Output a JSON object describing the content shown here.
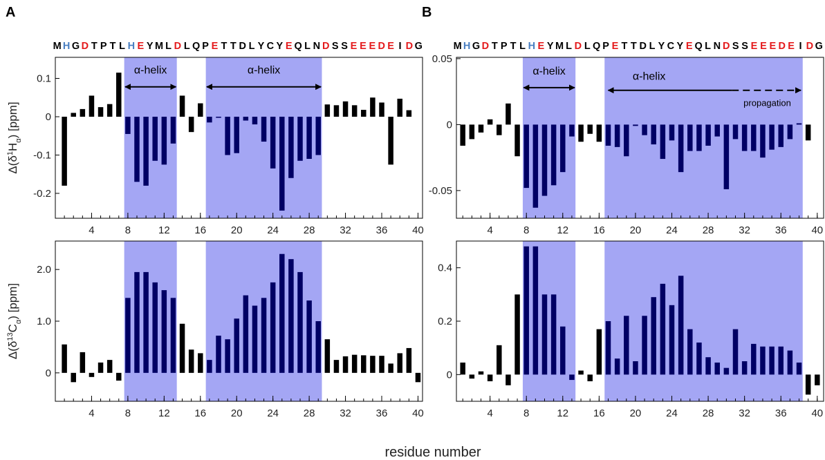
{
  "figure": {
    "xlabel": "residue number"
  },
  "sequence": {
    "residues": "MHGDTPTLHEYMLDLQPETTDLYCYEQLNDSSEEEDEIDG",
    "blue_positions": [
      2,
      9
    ],
    "red_positions": [
      4,
      10,
      14,
      18,
      26,
      30,
      33,
      34,
      35,
      36,
      37,
      39
    ]
  },
  "colors": {
    "helix_band": "#a4a6f4",
    "bar_in_helix": "#000064",
    "bar_default": "#000000",
    "seq_default": "#000000",
    "seq_red": "#e41a1c",
    "seq_blue": "#4a7fc1"
  },
  "chart_data": [
    {
      "id": "A-Ha",
      "panel_label": "A",
      "type": "bar",
      "ylabel_main": "Δ(δ",
      "ylabel_sup": "1",
      "ylabel_atom": "H",
      "ylabel_sub": "α",
      "ylabel_tail": ") [ppm]",
      "xlim": [
        0,
        40.5
      ],
      "ylim": [
        -0.265,
        0.155
      ],
      "xticks": [
        4,
        8,
        12,
        16,
        20,
        24,
        28,
        32,
        36,
        40
      ],
      "yticks": [
        {
          "value": 0.1,
          "label": "0.1"
        },
        {
          "value": 0,
          "label": "0"
        },
        {
          "value": -0.1,
          "label": "-0.1"
        },
        {
          "value": -0.2,
          "label": "-0.2"
        }
      ],
      "helix_regions": [
        [
          7.6,
          13.4
        ],
        [
          16.6,
          29.4
        ]
      ],
      "annotations": [
        {
          "text": "α-helix",
          "x": 10.5,
          "y": 0.113,
          "from": 7.7,
          "to": 13.3,
          "arrow_y": 0.078,
          "dashed_from": null
        },
        {
          "text": "α-helix",
          "x": 23,
          "y": 0.113,
          "from": 16.7,
          "to": 29.3,
          "arrow_y": 0.078,
          "dashed_from": null
        }
      ],
      "x": [
        1,
        2,
        3,
        4,
        5,
        6,
        7,
        8,
        9,
        10,
        11,
        12,
        13,
        14,
        15,
        16,
        17,
        18,
        19,
        20,
        21,
        22,
        23,
        24,
        25,
        26,
        27,
        28,
        29,
        30,
        31,
        32,
        33,
        34,
        35,
        36,
        37,
        38,
        39,
        40
      ],
      "values": [
        -0.18,
        0.01,
        0.02,
        0.055,
        0.025,
        0.033,
        0.115,
        -0.045,
        -0.17,
        -0.18,
        -0.115,
        -0.125,
        -0.07,
        0.055,
        -0.04,
        0.035,
        -0.015,
        -0.002,
        -0.1,
        -0.095,
        -0.01,
        -0.02,
        -0.065,
        -0.135,
        -0.245,
        -0.16,
        -0.115,
        -0.11,
        -0.1,
        0.032,
        0.03,
        0.04,
        0.03,
        0.018,
        0.05,
        0.037,
        -0.125,
        0.047,
        0.017,
        null
      ]
    },
    {
      "id": "A-Ca",
      "panel_label": "",
      "type": "bar",
      "ylabel_main": "Δ(δ",
      "ylabel_sup": "13",
      "ylabel_atom": "C",
      "ylabel_sub": "α",
      "ylabel_tail": ") [ppm]",
      "xlim": [
        0,
        40.5
      ],
      "ylim": [
        -0.55,
        2.55
      ],
      "xticks": [
        4,
        8,
        12,
        16,
        20,
        24,
        28,
        32,
        36,
        40
      ],
      "yticks": [
        {
          "value": 2.0,
          "label": "2.0"
        },
        {
          "value": 1.0,
          "label": "1.0"
        },
        {
          "value": 0,
          "label": "0"
        }
      ],
      "helix_regions": [
        [
          7.6,
          13.4
        ],
        [
          16.6,
          29.4
        ]
      ],
      "annotations": [],
      "x": [
        1,
        2,
        3,
        4,
        5,
        6,
        7,
        8,
        9,
        10,
        11,
        12,
        13,
        14,
        15,
        16,
        17,
        18,
        19,
        20,
        21,
        22,
        23,
        24,
        25,
        26,
        27,
        28,
        29,
        30,
        31,
        32,
        33,
        34,
        35,
        36,
        37,
        38,
        39,
        40
      ],
      "values": [
        0.55,
        -0.18,
        0.4,
        -0.08,
        0.2,
        0.25,
        -0.15,
        1.45,
        1.95,
        1.95,
        1.75,
        1.6,
        1.45,
        0.95,
        0.45,
        0.38,
        0.25,
        0.72,
        0.65,
        1.05,
        1.5,
        1.3,
        1.45,
        1.75,
        2.3,
        2.2,
        1.95,
        1.4,
        1.0,
        0.65,
        0.25,
        0.32,
        0.35,
        0.34,
        0.33,
        0.33,
        0.18,
        0.38,
        0.48,
        -0.18
      ]
    },
    {
      "id": "B-Ha",
      "panel_label": "B",
      "type": "bar",
      "ylabel_main": "",
      "ylabel_sup": "",
      "ylabel_atom": "",
      "ylabel_sub": "",
      "ylabel_tail": "",
      "xlim": [
        0.3,
        40.7
      ],
      "ylim": [
        -0.071,
        0.051
      ],
      "xticks": [
        4,
        8,
        12,
        16,
        20,
        24,
        28,
        32,
        36,
        40
      ],
      "yticks": [
        {
          "value": 0.05,
          "label": "0.05"
        },
        {
          "value": 0,
          "label": "0"
        },
        {
          "value": -0.05,
          "label": "-0.05"
        }
      ],
      "helix_regions": [
        [
          7.6,
          13.4
        ],
        [
          16.6,
          38.4
        ]
      ],
      "annotations": [
        {
          "text": "α-helix",
          "x": 10.5,
          "y": 0.038,
          "from": 7.7,
          "to": 13.3,
          "arrow_y": 0.028,
          "dashed_from": null
        },
        {
          "text": "α-helix",
          "x": 21.5,
          "y": 0.034,
          "from": 17.0,
          "to": 38.2,
          "arrow_y": 0.026,
          "dashed_from": 30.6
        },
        {
          "text": "propagation",
          "x": 34.5,
          "y": 0.014,
          "from": null,
          "to": null,
          "arrow_y": null,
          "dashed_from": null
        }
      ],
      "x": [
        1,
        2,
        3,
        4,
        5,
        6,
        7,
        8,
        9,
        10,
        11,
        12,
        13,
        14,
        15,
        16,
        17,
        18,
        19,
        20,
        21,
        22,
        23,
        24,
        25,
        26,
        27,
        28,
        29,
        30,
        31,
        32,
        33,
        34,
        35,
        36,
        37,
        38,
        39,
        40
      ],
      "values": [
        -0.016,
        -0.011,
        -0.006,
        0.004,
        -0.008,
        0.016,
        -0.024,
        -0.048,
        -0.063,
        -0.054,
        -0.046,
        -0.036,
        -0.009,
        -0.013,
        -0.007,
        -0.013,
        -0.016,
        -0.017,
        -0.024,
        -0.001,
        -0.008,
        -0.015,
        -0.026,
        -0.012,
        -0.036,
        -0.02,
        -0.02,
        -0.016,
        -0.009,
        -0.049,
        -0.011,
        -0.02,
        -0.02,
        -0.025,
        -0.019,
        -0.017,
        -0.011,
        0.001,
        -0.012,
        null
      ]
    },
    {
      "id": "B-Ca",
      "panel_label": "",
      "type": "bar",
      "ylabel_main": "",
      "ylabel_sup": "",
      "ylabel_atom": "",
      "ylabel_sub": "",
      "ylabel_tail": "",
      "xlim": [
        0.3,
        40.7
      ],
      "ylim": [
        -0.1,
        0.5
      ],
      "xticks": [
        4,
        8,
        12,
        16,
        20,
        24,
        28,
        32,
        36,
        40
      ],
      "yticks": [
        {
          "value": 0.4,
          "label": "0.4"
        },
        {
          "value": 0.2,
          "label": "0.2"
        },
        {
          "value": 0,
          "label": "0"
        }
      ],
      "helix_regions": [
        [
          7.6,
          13.4
        ],
        [
          16.6,
          38.4
        ]
      ],
      "annotations": [],
      "x": [
        1,
        2,
        3,
        4,
        5,
        6,
        7,
        8,
        9,
        10,
        11,
        12,
        13,
        14,
        15,
        16,
        17,
        18,
        19,
        20,
        21,
        22,
        23,
        24,
        25,
        26,
        27,
        28,
        29,
        30,
        31,
        32,
        33,
        34,
        35,
        36,
        37,
        38,
        39,
        40
      ],
      "values": [
        0.045,
        -0.015,
        0.012,
        -0.025,
        0.11,
        -0.04,
        0.3,
        0.48,
        0.48,
        0.3,
        0.3,
        0.18,
        -0.02,
        0.015,
        -0.025,
        0.17,
        0.2,
        0.06,
        0.22,
        0.05,
        0.22,
        0.29,
        0.34,
        0.26,
        0.37,
        0.17,
        0.12,
        0.065,
        0.045,
        0.025,
        0.17,
        0.05,
        0.115,
        0.105,
        0.105,
        0.105,
        0.09,
        0.045,
        -0.075,
        -0.04
      ]
    }
  ]
}
